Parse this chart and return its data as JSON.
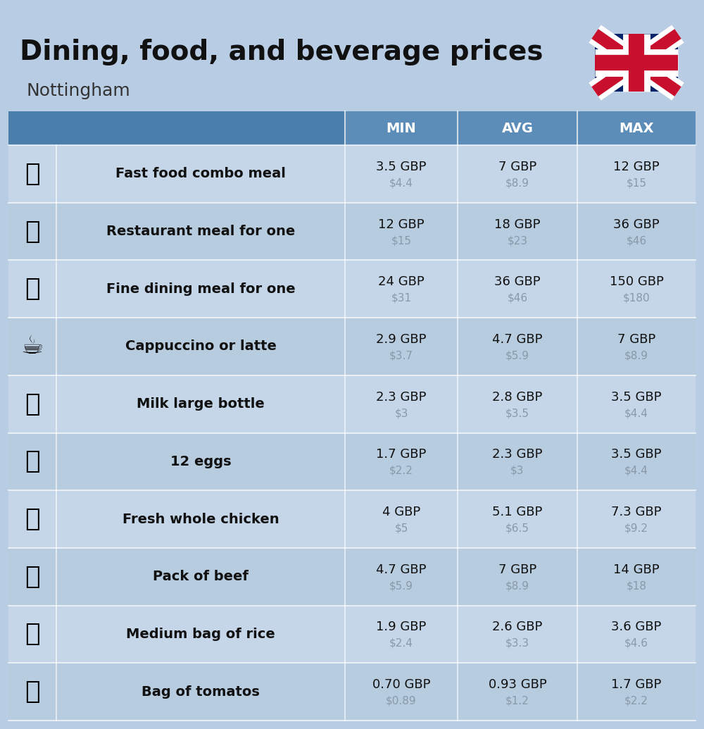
{
  "title": "Dining, food, and beverage prices",
  "subtitle": "Nottingham",
  "background_color": "#b8cce4",
  "header_color": "#5b8db8",
  "header_left_color": "#4a7eab",
  "row_color_even": "#c5d6e8",
  "row_color_odd": "#b8cce0",
  "header_text_color": "#ffffff",
  "cell_text_color": "#111111",
  "sub_text_color": "#8899aa",
  "label_fontsize": 14,
  "value_fontsize": 13,
  "sub_fontsize": 11,
  "header_fontsize": 14,
  "title_fontsize": 28,
  "subtitle_fontsize": 18,
  "columns": [
    "MIN",
    "AVG",
    "MAX"
  ],
  "rows": [
    {
      "label": "Fast food combo meal",
      "icon": "🍔",
      "min_gbp": "3.5 GBP",
      "min_usd": "$4.4",
      "avg_gbp": "7 GBP",
      "avg_usd": "$8.9",
      "max_gbp": "12 GBP",
      "max_usd": "$15"
    },
    {
      "label": "Restaurant meal for one",
      "icon": "🍳",
      "min_gbp": "12 GBP",
      "min_usd": "$15",
      "avg_gbp": "18 GBP",
      "avg_usd": "$23",
      "max_gbp": "36 GBP",
      "max_usd": "$46"
    },
    {
      "label": "Fine dining meal for one",
      "icon": "🍽",
      "min_gbp": "24 GBP",
      "min_usd": "$31",
      "avg_gbp": "36 GBP",
      "avg_usd": "$46",
      "max_gbp": "150 GBP",
      "max_usd": "$180"
    },
    {
      "label": "Cappuccino or latte",
      "icon": "☕",
      "min_gbp": "2.9 GBP",
      "min_usd": "$3.7",
      "avg_gbp": "4.7 GBP",
      "avg_usd": "$5.9",
      "max_gbp": "7 GBP",
      "max_usd": "$8.9"
    },
    {
      "label": "Milk large bottle",
      "icon": "🥛",
      "min_gbp": "2.3 GBP",
      "min_usd": "$3",
      "avg_gbp": "2.8 GBP",
      "avg_usd": "$3.5",
      "max_gbp": "3.5 GBP",
      "max_usd": "$4.4"
    },
    {
      "label": "12 eggs",
      "icon": "🥚",
      "min_gbp": "1.7 GBP",
      "min_usd": "$2.2",
      "avg_gbp": "2.3 GBP",
      "avg_usd": "$3",
      "max_gbp": "3.5 GBP",
      "max_usd": "$4.4"
    },
    {
      "label": "Fresh whole chicken",
      "icon": "🐔",
      "min_gbp": "4 GBP",
      "min_usd": "$5",
      "avg_gbp": "5.1 GBP",
      "avg_usd": "$6.5",
      "max_gbp": "7.3 GBP",
      "max_usd": "$9.2"
    },
    {
      "label": "Pack of beef",
      "icon": "🥩",
      "min_gbp": "4.7 GBP",
      "min_usd": "$5.9",
      "avg_gbp": "7 GBP",
      "avg_usd": "$8.9",
      "max_gbp": "14 GBP",
      "max_usd": "$18"
    },
    {
      "label": "Medium bag of rice",
      "icon": "🍚",
      "min_gbp": "1.9 GBP",
      "min_usd": "$2.4",
      "avg_gbp": "2.6 GBP",
      "avg_usd": "$3.3",
      "max_gbp": "3.6 GBP",
      "max_usd": "$4.6"
    },
    {
      "label": "Bag of tomatos",
      "icon": "🍅",
      "min_gbp": "0.70 GBP",
      "min_usd": "$0.89",
      "avg_gbp": "0.93 GBP",
      "avg_usd": "$1.2",
      "max_gbp": "1.7 GBP",
      "max_usd": "$2.2"
    }
  ]
}
